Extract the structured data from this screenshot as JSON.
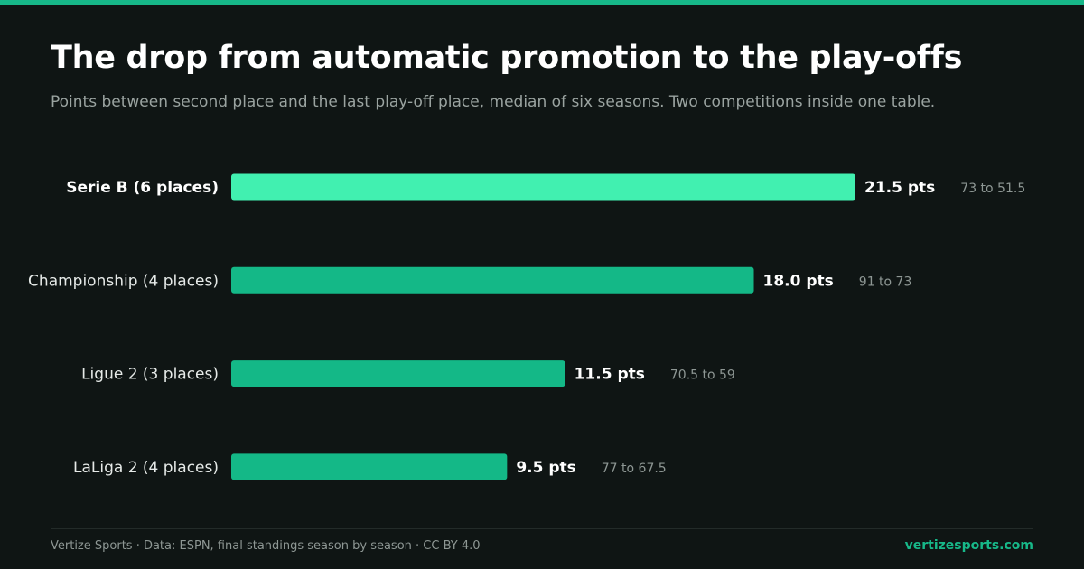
{
  "header": {
    "title": "The drop from automatic promotion to the play-offs",
    "subtitle": "Points between second place and the last play-off place, median of six seasons. Two competitions inside one table."
  },
  "colors": {
    "highlight_bar": "#41f0b0",
    "bar": "#14b887",
    "background": "#0f1514",
    "accent": "#17b889"
  },
  "chart_data": {
    "type": "bar",
    "orientation": "horizontal",
    "title": "The drop from automatic promotion to the play-offs",
    "subtitle": "Points between second place and the last play-off place, median of six seasons. Two competitions inside one table.",
    "categories": [
      "Serie B (6 places)",
      "Championship (4 places)",
      "Ligue 2 (3 places)",
      "LaLiga 2 (4 places)"
    ],
    "values": [
      21.5,
      18.0,
      11.5,
      9.5
    ],
    "value_labels": [
      "21.5 pts",
      "18.0 pts",
      "11.5 pts",
      "9.5 pts"
    ],
    "ranges": [
      "73 to 51.5",
      "91 to 73",
      "70.5 to 59",
      "77 to 67.5"
    ],
    "highlighted": [
      true,
      false,
      false,
      false
    ],
    "xlim": [
      0,
      21.5
    ],
    "grid": false,
    "legend": "none"
  },
  "footer": {
    "source": "Vertize Sports · Data: ESPN, final standings season by season · CC BY 4.0",
    "site": "vertizesports.com"
  }
}
